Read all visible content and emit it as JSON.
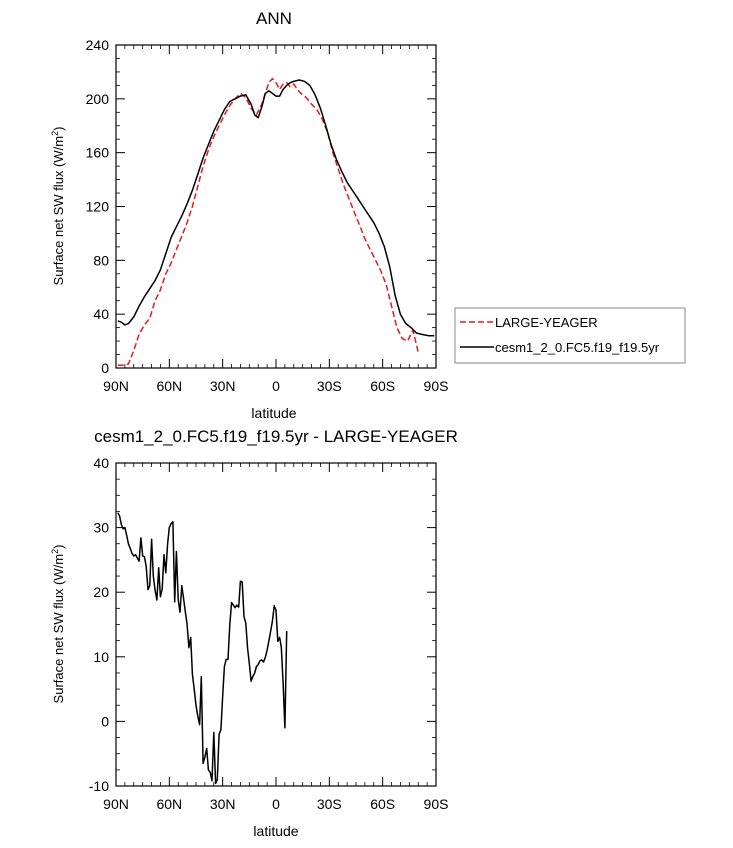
{
  "chart_data": [
    {
      "type": "line",
      "title": "ANN",
      "xlabel": "latitude",
      "ylabel": "Surface net SW flux (W/m",
      "ylabel_sup": "2",
      "ylabel_close": ")",
      "xlim": [
        90,
        -90
      ],
      "ylim": [
        0,
        240
      ],
      "x_ticks": [
        90,
        60,
        30,
        0,
        -30,
        -60,
        -90
      ],
      "x_tick_labels": [
        "90N",
        "60N",
        "30N",
        "0",
        "30S",
        "60S",
        "90S"
      ],
      "y_ticks": [
        0,
        40,
        80,
        120,
        160,
        200,
        240
      ],
      "y_tick_labels": [
        "0",
        "40",
        "80",
        "120",
        "160",
        "200",
        "240"
      ],
      "grid": false,
      "legend_position": "right",
      "series": [
        {
          "name": "LARGE-YEAGER",
          "color": "#e8191e",
          "dash": "dashed",
          "points": [
            [
              89,
              2
            ],
            [
              86,
              2
            ],
            [
              83,
              3
            ],
            [
              80,
              13
            ],
            [
              77,
              25
            ],
            [
              74,
              32
            ],
            [
              71,
              37
            ],
            [
              68,
              50
            ],
            [
              65,
              58
            ],
            [
              62,
              70
            ],
            [
              59,
              78
            ],
            [
              56,
              88
            ],
            [
              53,
              98
            ],
            [
              50,
              108
            ],
            [
              47,
              120
            ],
            [
              44,
              135
            ],
            [
              41,
              150
            ],
            [
              38,
              162
            ],
            [
              35,
              172
            ],
            [
              32,
              180
            ],
            [
              29,
              188
            ],
            [
              26,
              195
            ],
            [
              23,
              200
            ],
            [
              20,
              204
            ],
            [
              17,
              201
            ],
            [
              14,
              193
            ],
            [
              11,
              188
            ],
            [
              8,
              196
            ],
            [
              6,
              204
            ],
            [
              4,
              212
            ],
            [
              2,
              215
            ],
            [
              0,
              212
            ],
            [
              -2,
              207
            ],
            [
              -4,
              211
            ],
            [
              -6,
              212
            ],
            [
              -8,
              209
            ],
            [
              -10,
              211
            ],
            [
              -12,
              207
            ],
            [
              -14,
              204
            ],
            [
              -17,
              201
            ],
            [
              -20,
              196
            ],
            [
              -23,
              192
            ],
            [
              -26,
              185
            ],
            [
              -29,
              175
            ],
            [
              -32,
              160
            ],
            [
              -35,
              148
            ],
            [
              -38,
              136
            ],
            [
              -41,
              126
            ],
            [
              -44,
              116
            ],
            [
              -47,
              106
            ],
            [
              -50,
              96
            ],
            [
              -53,
              88
            ],
            [
              -56,
              80
            ],
            [
              -59,
              72
            ],
            [
              -62,
              62
            ],
            [
              -65,
              46
            ],
            [
              -68,
              30
            ],
            [
              -71,
              22
            ],
            [
              -74,
              20
            ],
            [
              -77,
              28
            ],
            [
              -80,
              12
            ]
          ]
        },
        {
          "name": "cesm1_2_0.FC5.f19_f19.5yr",
          "color": "#000000",
          "dash": "solid",
          "points": [
            [
              89,
              35
            ],
            [
              87,
              34
            ],
            [
              85,
              32
            ],
            [
              83,
              33
            ],
            [
              80,
              38
            ],
            [
              77,
              46
            ],
            [
              74,
              53
            ],
            [
              71,
              59
            ],
            [
              68,
              65
            ],
            [
              65,
              73
            ],
            [
              62,
              85
            ],
            [
              59,
              97
            ],
            [
              56,
              105
            ],
            [
              53,
              113
            ],
            [
              50,
              122
            ],
            [
              47,
              132
            ],
            [
              44,
              144
            ],
            [
              41,
              156
            ],
            [
              38,
              166
            ],
            [
              35,
              176
            ],
            [
              32,
              184
            ],
            [
              29,
              192
            ],
            [
              26,
              198
            ],
            [
              23,
              200
            ],
            [
              20,
              202
            ],
            [
              17,
              203
            ],
            [
              14,
              196
            ],
            [
              12,
              188
            ],
            [
              10,
              186
            ],
            [
              8,
              194
            ],
            [
              6,
              204
            ],
            [
              4,
              206
            ],
            [
              2,
              204
            ],
            [
              0,
              202
            ],
            [
              -2,
              202
            ],
            [
              -4,
              207
            ],
            [
              -6,
              210
            ],
            [
              -8,
              212
            ],
            [
              -10,
              213
            ],
            [
              -13,
              214
            ],
            [
              -16,
              213
            ],
            [
              -19,
              210
            ],
            [
              -22,
              203
            ],
            [
              -25,
              193
            ],
            [
              -28,
              180
            ],
            [
              -31,
              166
            ],
            [
              -34,
              155
            ],
            [
              -37,
              146
            ],
            [
              -40,
              138
            ],
            [
              -43,
              132
            ],
            [
              -46,
              126
            ],
            [
              -49,
              120
            ],
            [
              -52,
              114
            ],
            [
              -55,
              108
            ],
            [
              -58,
              100
            ],
            [
              -61,
              90
            ],
            [
              -64,
              75
            ],
            [
              -67,
              54
            ],
            [
              -70,
              40
            ],
            [
              -73,
              33
            ],
            [
              -76,
              30
            ],
            [
              -79,
              26
            ],
            [
              -82,
              25
            ],
            [
              -86,
              24
            ],
            [
              -89,
              24
            ]
          ]
        }
      ]
    },
    {
      "type": "line",
      "title": "cesm1_2_0.FC5.f19_f19.5yr - LARGE-YEAGER",
      "xlabel": "latitude",
      "ylabel": "Surface net SW flux (W/m",
      "ylabel_sup": "2",
      "ylabel_close": ")",
      "xlim": [
        90,
        -90
      ],
      "ylim": [
        -10,
        40
      ],
      "x_ticks": [
        90,
        60,
        30,
        0,
        -30,
        -60,
        -90
      ],
      "x_tick_labels": [
        "90N",
        "60N",
        "30N",
        "0",
        "30S",
        "60S",
        "90S"
      ],
      "y_ticks": [
        -10,
        0,
        10,
        20,
        30,
        40
      ],
      "y_tick_labels": [
        "-10",
        "0",
        "10",
        "20",
        "30",
        "40"
      ],
      "grid": false,
      "series": [
        {
          "color": "#000000",
          "dash": "solid",
          "points": [
            [
              89,
              32.3
            ],
            [
              88,
              31.8
            ],
            [
              87,
              30.5
            ],
            [
              86,
              29.8
            ],
            [
              85,
              30.0
            ],
            [
              84,
              28.8
            ],
            [
              83,
              27.5
            ],
            [
              82,
              26.8
            ],
            [
              81,
              26.0
            ],
            [
              80,
              25.6
            ],
            [
              79,
              25.8
            ],
            [
              78,
              25.3
            ],
            [
              77,
              24.8
            ],
            [
              76,
              28.4
            ],
            [
              75,
              25.6
            ],
            [
              74,
              25.5
            ],
            [
              73,
              24.0
            ],
            [
              72,
              20.4
            ],
            [
              71,
              21.0
            ],
            [
              70,
              28.2
            ],
            [
              69,
              22.5
            ],
            [
              68,
              20.3
            ],
            [
              67,
              18.8
            ],
            [
              66,
              23.8
            ],
            [
              65,
              19.3
            ],
            [
              64,
              20.5
            ],
            [
              63,
              25.8
            ],
            [
              62,
              23.0
            ],
            [
              61,
              27.5
            ],
            [
              60,
              30.0
            ],
            [
              59,
              30.6
            ],
            [
              58,
              30.9
            ],
            [
              57,
              18.5
            ],
            [
              56,
              26.3
            ],
            [
              55,
              18.9
            ],
            [
              54,
              16.9
            ],
            [
              53,
              21.0
            ],
            [
              52,
              19.0
            ],
            [
              51,
              17.0
            ],
            [
              50,
              15.0
            ],
            [
              49,
              11.4
            ],
            [
              48,
              13.0
            ],
            [
              47,
              7.3
            ],
            [
              46,
              5.0
            ],
            [
              45,
              2.5
            ],
            [
              44,
              0.8
            ],
            [
              43,
              -0.5
            ],
            [
              42,
              6.9
            ],
            [
              41,
              -6.5
            ],
            [
              40,
              -5.5
            ],
            [
              39,
              -4.2
            ],
            [
              38,
              -7.5
            ],
            [
              37,
              -7.9
            ],
            [
              36,
              -9.2
            ],
            [
              35,
              -1.7
            ],
            [
              34,
              -9.6
            ],
            [
              33,
              -9.0
            ],
            [
              32,
              -2.0
            ],
            [
              31,
              -1.3
            ],
            [
              30,
              4.0
            ],
            [
              29,
              8.5
            ],
            [
              28,
              9.6
            ],
            [
              27,
              9.6
            ],
            [
              26,
              15.0
            ],
            [
              25,
              18.4
            ],
            [
              24,
              18.0
            ],
            [
              23,
              17.6
            ],
            [
              22,
              18.0
            ],
            [
              21,
              17.7
            ],
            [
              20,
              21.7
            ],
            [
              19,
              21.6
            ],
            [
              18,
              16.2
            ],
            [
              17,
              15.2
            ],
            [
              16,
              11.3
            ],
            [
              15,
              9.0
            ],
            [
              14,
              6.2
            ],
            [
              13,
              7.0
            ],
            [
              12,
              7.5
            ],
            [
              11,
              8.5
            ],
            [
              10,
              8.8
            ],
            [
              9,
              9.4
            ],
            [
              8,
              9.5
            ],
            [
              7,
              9.2
            ],
            [
              6,
              9.9
            ],
            [
              5,
              11.0
            ],
            [
              4,
              12.5
            ],
            [
              3,
              14.0
            ],
            [
              2,
              15.5
            ],
            [
              1,
              17.9
            ],
            [
              0,
              17.2
            ],
            [
              -1,
              12.4
            ],
            [
              -2,
              13.0
            ],
            [
              -3,
              11.5
            ],
            [
              -4,
              6.0
            ],
            [
              -5,
              -1.0
            ],
            [
              -6,
              14.0
            ]
          ]
        }
      ]
    }
  ]
}
